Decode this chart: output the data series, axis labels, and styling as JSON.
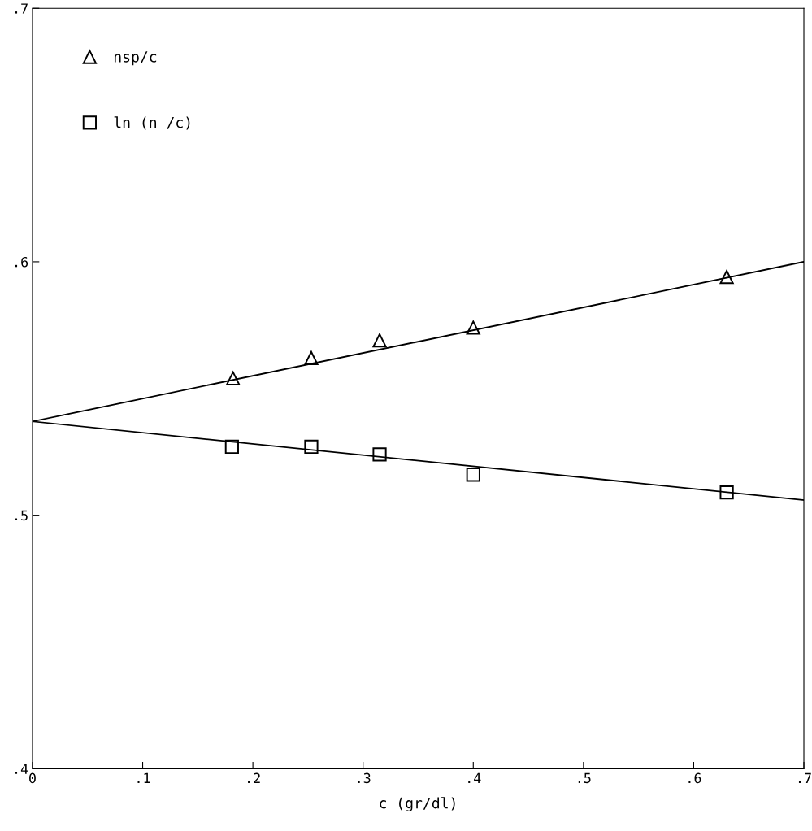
{
  "chart_data": {
    "type": "scatter",
    "xlabel": "c (gr/dl)",
    "xlim": [
      0,
      0.7
    ],
    "ylim": [
      0.4,
      0.7
    ],
    "xticks": [
      0,
      {
        "value": 0.1,
        "label": ".1"
      },
      {
        "value": 0.2,
        "label": ".2"
      },
      {
        "value": 0.3,
        "label": ".3"
      },
      {
        "value": 0.4,
        "label": ".4"
      },
      {
        "value": 0.5,
        "label": ".5"
      },
      {
        "value": 0.6,
        "label": ".6"
      },
      {
        "value": 0.7,
        "label": ".7"
      }
    ],
    "yticks": [
      {
        "value": 0.4,
        "label": ".4"
      },
      {
        "value": 0.5,
        "label": ".5"
      },
      {
        "value": 0.6,
        "label": ".6"
      },
      {
        "value": 0.7,
        "label": ".7"
      }
    ],
    "grid": false,
    "legend": "top left",
    "series": [
      {
        "name": "nsp/c",
        "marker": "triangle",
        "color": "#000000",
        "x": [
          0.182,
          0.253,
          0.315,
          0.4,
          0.63
        ],
        "values": [
          0.554,
          0.562,
          0.569,
          0.574,
          0.594
        ]
      },
      {
        "name": "ln (n /c)",
        "marker": "square",
        "color": "#000000",
        "x": [
          0.181,
          0.253,
          0.315,
          0.4,
          0.63
        ],
        "values": [
          0.527,
          0.527,
          0.524,
          0.516,
          0.509
        ]
      },
      {
        "type": "line",
        "marker": "none",
        "color": "#000000",
        "x": [
          0,
          0.7
        ],
        "values": [
          0.537,
          0.6
        ]
      },
      {
        "type": "line",
        "marker": "none",
        "color": "#000000",
        "x": [
          0,
          0.7
        ],
        "values": [
          0.537,
          0.506
        ]
      }
    ]
  }
}
